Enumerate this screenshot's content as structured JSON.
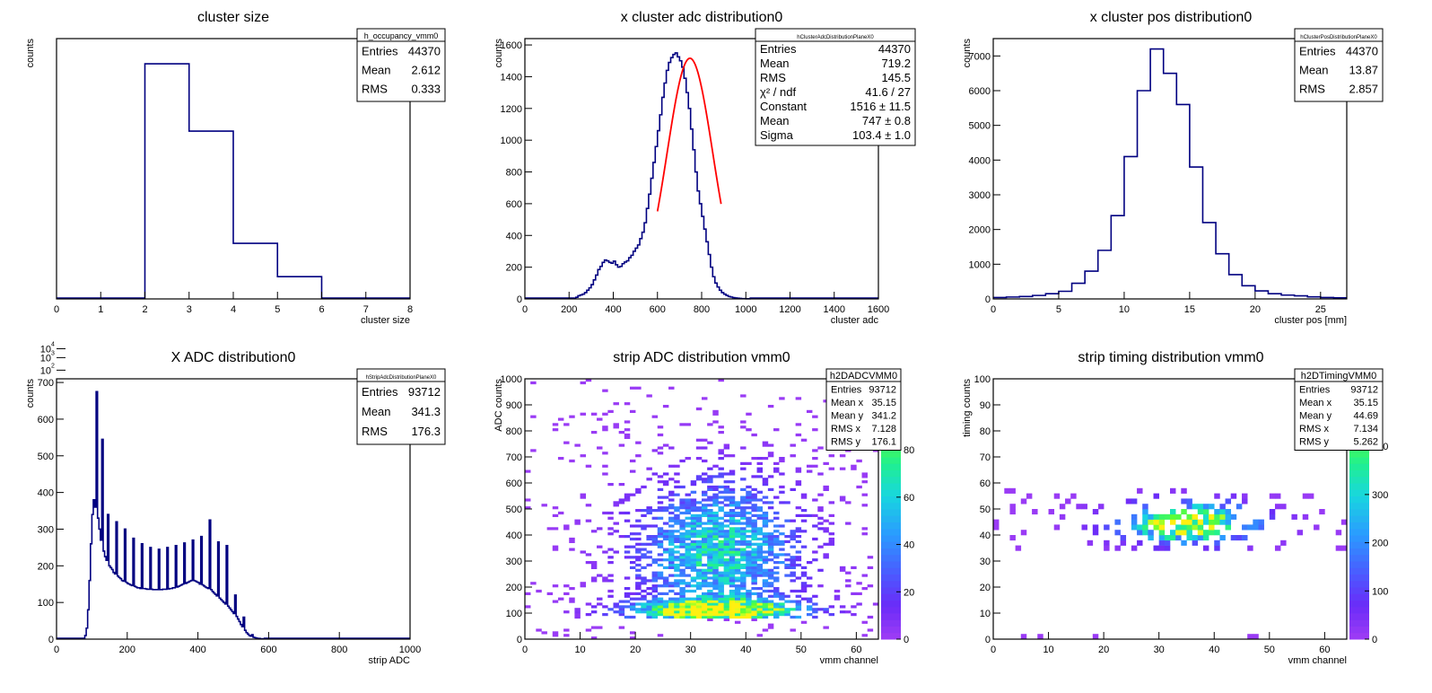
{
  "chart_data": [
    {
      "type": "bar",
      "title": "cluster size",
      "xlabel": "cluster size",
      "ylabel": "counts",
      "xlim": [
        0,
        8
      ],
      "ylog": true,
      "ylim_log": [
        1.3,
        4.95
      ],
      "line_color": "#000080",
      "x_ticks": [
        0,
        1,
        2,
        3,
        4,
        5,
        6,
        7,
        8
      ],
      "y_ticks": [
        {
          "value": 4,
          "label": "10",
          "exp": "4"
        },
        {
          "value": 3,
          "label": "10",
          "exp": "3"
        },
        {
          "value": 2,
          "label": "10",
          "exp": "2"
        }
      ],
      "bins": [
        {
          "x0": 0,
          "x1": 2,
          "value": 0
        },
        {
          "x0": 2,
          "x1": 3,
          "value": 39500
        },
        {
          "x0": 3,
          "x1": 4,
          "value": 4500
        },
        {
          "x0": 4,
          "x1": 5,
          "value": 120
        },
        {
          "x0": 5,
          "x1": 6,
          "value": 41
        },
        {
          "x0": 6,
          "x1": 8,
          "value": 0
        }
      ],
      "stats": {
        "name": "h_occupancy_vmm0",
        "rows": [
          [
            "Entries",
            "44370"
          ],
          [
            "Mean",
            "2.612"
          ],
          [
            "RMS",
            "0.333"
          ]
        ]
      }
    },
    {
      "type": "bar",
      "title": "x cluster adc distribution0",
      "xlabel": "cluster adc",
      "ylabel": "counts",
      "xlim": [
        0,
        1600
      ],
      "ylim": [
        0,
        1640
      ],
      "line_color": "#000080",
      "fit_color": "#ff0000",
      "fit": {
        "constant": 1516,
        "mean": 747,
        "sigma": 103.4,
        "x_range": [
          600,
          890
        ]
      },
      "x_ticks": [
        0,
        200,
        400,
        600,
        800,
        1000,
        1200,
        1400,
        1600
      ],
      "y_ticks": [
        0,
        200,
        400,
        600,
        800,
        1000,
        1200,
        1400,
        1600
      ],
      "bin_width": 10,
      "x_start": 200,
      "values": [
        0,
        0,
        5,
        10,
        20,
        25,
        30,
        40,
        55,
        70,
        90,
        120,
        150,
        185,
        205,
        230,
        245,
        240,
        230,
        225,
        238,
        215,
        200,
        205,
        222,
        232,
        240,
        260,
        275,
        300,
        320,
        340,
        380,
        420,
        480,
        570,
        660,
        760,
        860,
        960,
        1060,
        1160,
        1270,
        1360,
        1440,
        1490,
        1520,
        1540,
        1550,
        1525,
        1500,
        1460,
        1390,
        1300,
        1200,
        1070,
        940,
        800,
        680,
        600,
        520,
        440,
        360,
        280,
        200,
        140,
        100,
        75,
        55,
        40,
        30,
        22,
        15,
        12,
        8,
        6,
        5,
        3,
        2,
        2,
        1,
        1,
        0,
        0,
        0,
        0,
        0,
        0,
        0,
        0
      ],
      "stats": {
        "name": "hClusterAdcDistributionPlaneX0",
        "rows": [
          [
            "Entries",
            "44370"
          ],
          [
            "Mean",
            "719.2"
          ],
          [
            "RMS",
            "145.5"
          ],
          [
            "χ² / ndf",
            "41.6 / 27"
          ],
          [
            "Constant",
            "1516 ± 11.5"
          ],
          [
            "Mean",
            "747 ± 0.8"
          ],
          [
            "Sigma",
            "103.4 ± 1.0"
          ]
        ]
      }
    },
    {
      "type": "bar",
      "title": "x cluster pos distribution0",
      "xlabel": "cluster pos [mm]",
      "ylabel": "counts",
      "xlim": [
        0,
        27
      ],
      "ylim": [
        0,
        7500
      ],
      "line_color": "#000080",
      "x_ticks": [
        0,
        5,
        10,
        15,
        20,
        25
      ],
      "y_ticks": [
        0,
        1000,
        2000,
        3000,
        4000,
        5000,
        6000,
        7000
      ],
      "bin_width": 1,
      "x_start": 0,
      "values": [
        40,
        55,
        70,
        100,
        150,
        220,
        450,
        800,
        1400,
        2400,
        4100,
        6000,
        7200,
        6500,
        5600,
        3800,
        2200,
        1300,
        700,
        380,
        230,
        150,
        110,
        90,
        60,
        40,
        30
      ],
      "stats": {
        "name": "hClusterPosDistributionPlaneX0",
        "rows": [
          [
            "Entries",
            "44370"
          ],
          [
            "Mean",
            "13.87"
          ],
          [
            "RMS",
            "2.857"
          ]
        ]
      }
    },
    {
      "type": "bar",
      "title": "X ADC distribution0",
      "xlabel": "strip ADC",
      "ylabel": "counts",
      "xlim": [
        0,
        1000
      ],
      "ylim": [
        0,
        710
      ],
      "line_color": "#000080",
      "x_ticks": [
        0,
        200,
        400,
        600,
        800,
        1000
      ],
      "y_ticks": [
        0,
        100,
        200,
        300,
        400,
        500,
        600,
        700
      ],
      "bin_width": 4,
      "x_start": 80,
      "values": [
        10,
        30,
        80,
        160,
        260,
        340,
        380,
        360,
        675,
        330,
        300,
        270,
        545,
        240,
        225,
        215,
        340,
        200,
        195,
        190,
        182,
        178,
        320,
        172,
        168,
        165,
        160,
        158,
        300,
        155,
        152,
        150,
        148,
        146,
        275,
        144,
        142,
        140,
        140,
        138,
        260,
        138,
        138,
        137,
        136,
        136,
        250,
        136,
        135,
        135,
        135,
        135,
        245,
        135,
        135,
        136,
        136,
        136,
        250,
        137,
        138,
        138,
        140,
        140,
        255,
        142,
        144,
        146,
        148,
        150,
        262,
        152,
        154,
        156,
        158,
        160,
        270,
        160,
        158,
        156,
        154,
        150,
        280,
        148,
        145,
        142,
        140,
        138,
        325,
        135,
        130,
        126,
        122,
        118,
        265,
        112,
        108,
        104,
        100,
        96,
        255,
        90,
        85,
        80,
        75,
        70,
        120,
        62,
        55,
        48,
        40,
        34,
        60,
        24,
        18,
        14,
        10,
        8,
        12,
        5,
        4,
        3,
        2,
        2,
        1,
        1,
        1,
        0
      ],
      "stats": {
        "name": "hStripAdcDistributionPlaneX0",
        "rows": [
          [
            "Entries",
            "93712"
          ],
          [
            "Mean",
            "341.3"
          ],
          [
            "RMS",
            "176.3"
          ]
        ]
      }
    },
    {
      "type": "heatmap",
      "title": "strip ADC distribution vmm0",
      "xlabel": "vmm channel",
      "ylabel": "ADC counts",
      "xlim": [
        0,
        64
      ],
      "ylim": [
        0,
        1000
      ],
      "x_ticks": [
        0,
        10,
        20,
        30,
        40,
        50,
        60
      ],
      "y_ticks": [
        0,
        100,
        200,
        300,
        400,
        500,
        600,
        700,
        800,
        900,
        1000
      ],
      "z_ticks": [
        0,
        20,
        40,
        60,
        80,
        100
      ],
      "zmax": 110,
      "model": {
        "xc": 35,
        "xw": 10,
        "yc": 340,
        "yw": 180
      },
      "stats": {
        "name": "h2DADCVMM0",
        "rows": [
          [
            "Entries",
            "93712"
          ],
          [
            "Mean x",
            "35.15"
          ],
          [
            "Mean y",
            "341.2"
          ],
          [
            "RMS x",
            "7.128"
          ],
          [
            "RMS y",
            "176.1"
          ]
        ]
      }
    },
    {
      "type": "heatmap",
      "title": "strip timing distribution vmm0",
      "xlabel": "vmm channel",
      "ylabel": "timing counts",
      "xlim": [
        0,
        64
      ],
      "ylim": [
        0,
        100
      ],
      "x_ticks": [
        0,
        10,
        20,
        30,
        40,
        50,
        60
      ],
      "y_ticks": [
        0,
        10,
        20,
        30,
        40,
        50,
        60,
        70,
        80,
        90,
        100
      ],
      "z_ticks": [
        0,
        100,
        200,
        300,
        400,
        500
      ],
      "zmax": 540,
      "model": {
        "xc": 35,
        "xw": 8,
        "yc": 44.7,
        "yw": 5
      },
      "stats": {
        "name": "h2DTimingVMM0",
        "rows": [
          [
            "Entries",
            "93712"
          ],
          [
            "Mean x",
            "35.15"
          ],
          [
            "Mean y",
            "44.69"
          ],
          [
            "RMS x",
            "7.134"
          ],
          [
            "RMS y",
            "5.262"
          ]
        ]
      }
    }
  ]
}
